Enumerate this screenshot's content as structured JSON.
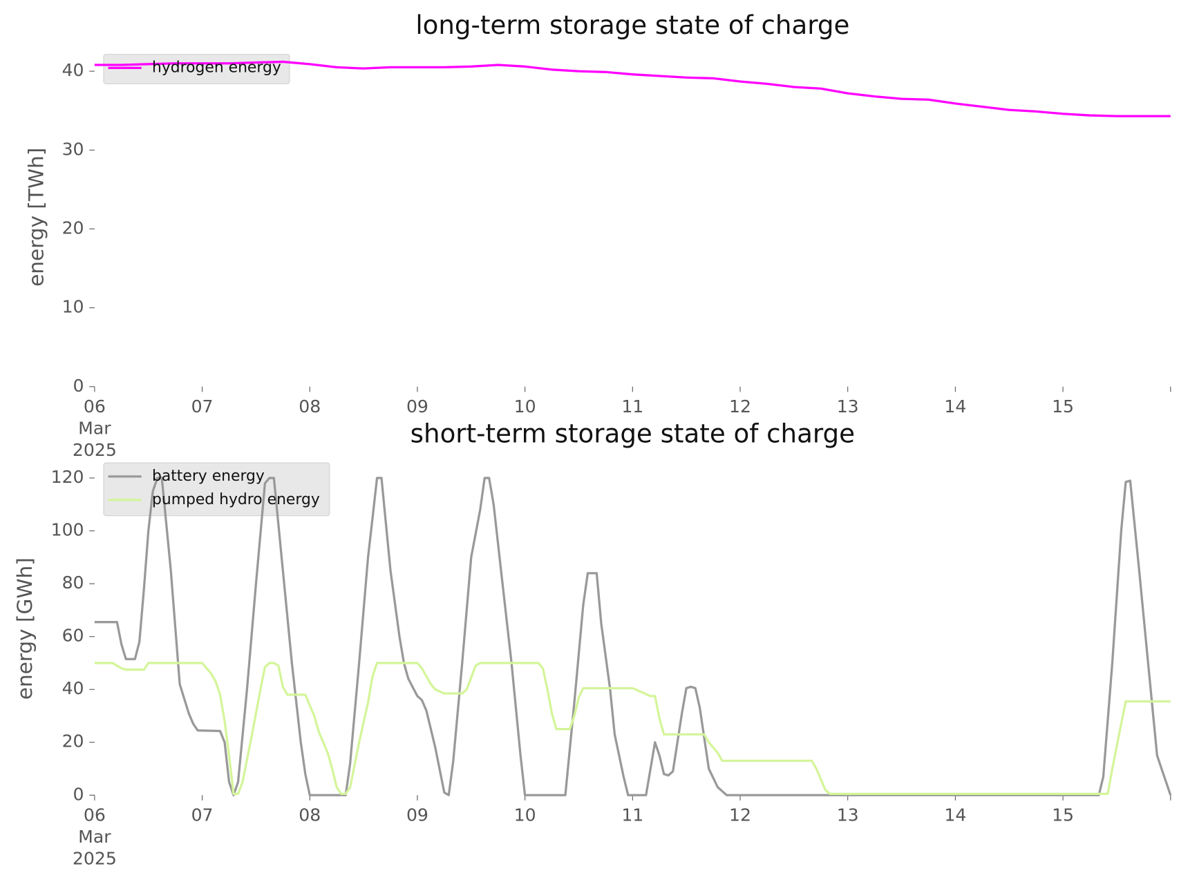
{
  "chart_data": [
    {
      "type": "line",
      "title": "long-term storage state of charge",
      "y_label": "energy [TWh]",
      "ylim": [
        0,
        43
      ],
      "yticks": [
        0,
        10,
        20,
        30,
        40
      ],
      "xlim": [
        "2025-03-06T00:00",
        "2025-03-16T00:00"
      ],
      "xticks": [
        {
          "value": "2025-03-06T00:00",
          "label": "06\nMar\n2025"
        },
        {
          "value": "2025-03-07T00:00",
          "label": "07"
        },
        {
          "value": "2025-03-08T00:00",
          "label": "08"
        },
        {
          "value": "2025-03-09T00:00",
          "label": "09"
        },
        {
          "value": "2025-03-10T00:00",
          "label": "10"
        },
        {
          "value": "2025-03-11T00:00",
          "label": "11"
        },
        {
          "value": "2025-03-12T00:00",
          "label": "12"
        },
        {
          "value": "2025-03-13T00:00",
          "label": "13"
        },
        {
          "value": "2025-03-14T00:00",
          "label": "14"
        },
        {
          "value": "2025-03-15T00:00",
          "label": "15"
        }
      ],
      "grid": false,
      "legend": "upper left",
      "x": [
        "2025-03-06T00:00",
        "2025-03-06T06:00",
        "2025-03-06T12:00",
        "2025-03-06T18:00",
        "2025-03-07T00:00",
        "2025-03-07T06:00",
        "2025-03-07T12:00",
        "2025-03-07T18:00",
        "2025-03-08T00:00",
        "2025-03-08T06:00",
        "2025-03-08T12:00",
        "2025-03-08T18:00",
        "2025-03-09T00:00",
        "2025-03-09T06:00",
        "2025-03-09T12:00",
        "2025-03-09T18:00",
        "2025-03-10T00:00",
        "2025-03-10T06:00",
        "2025-03-10T12:00",
        "2025-03-10T18:00",
        "2025-03-11T00:00",
        "2025-03-11T06:00",
        "2025-03-11T12:00",
        "2025-03-11T18:00",
        "2025-03-12T00:00",
        "2025-03-12T06:00",
        "2025-03-12T12:00",
        "2025-03-12T18:00",
        "2025-03-13T00:00",
        "2025-03-13T06:00",
        "2025-03-13T12:00",
        "2025-03-13T18:00",
        "2025-03-14T00:00",
        "2025-03-14T06:00",
        "2025-03-14T12:00",
        "2025-03-14T18:00",
        "2025-03-15T00:00",
        "2025-03-15T06:00",
        "2025-03-15T12:00",
        "2025-03-15T18:00",
        "2025-03-16T00:00"
      ],
      "series": [
        {
          "name": "hydrogen energy",
          "color": "#ff00ff",
          "values": [
            40.8,
            40.8,
            40.9,
            41.0,
            41.0,
            41.0,
            41.1,
            41.2,
            40.9,
            40.5,
            40.35,
            40.5,
            40.5,
            40.5,
            40.6,
            40.8,
            40.6,
            40.2,
            40.0,
            39.9,
            39.6,
            39.4,
            39.2,
            39.1,
            38.7,
            38.4,
            38.0,
            37.8,
            37.2,
            36.8,
            36.5,
            36.4,
            35.9,
            35.5,
            35.1,
            34.9,
            34.6,
            34.4,
            34.3,
            34.3,
            34.3
          ]
        }
      ]
    },
    {
      "type": "line",
      "title": "short-term storage state of charge",
      "y_label": "energy [GWh]",
      "ylim": [
        0,
        126
      ],
      "yticks": [
        0,
        20,
        40,
        60,
        80,
        100,
        120
      ],
      "xlim": [
        "2025-03-06T00:00",
        "2025-03-16T00:00"
      ],
      "xticks": [
        {
          "value": "2025-03-06T00:00",
          "label": "06\nMar\n2025"
        },
        {
          "value": "2025-03-07T00:00",
          "label": "07"
        },
        {
          "value": "2025-03-08T00:00",
          "label": "08"
        },
        {
          "value": "2025-03-09T00:00",
          "label": "09"
        },
        {
          "value": "2025-03-10T00:00",
          "label": "10"
        },
        {
          "value": "2025-03-11T00:00",
          "label": "11"
        },
        {
          "value": "2025-03-12T00:00",
          "label": "12"
        },
        {
          "value": "2025-03-13T00:00",
          "label": "13"
        },
        {
          "value": "2025-03-14T00:00",
          "label": "14"
        },
        {
          "value": "2025-03-15T00:00",
          "label": "15"
        }
      ],
      "grid": false,
      "legend": "upper left",
      "series": [
        {
          "name": "battery energy",
          "color": "#999999",
          "x": [
            "2025-03-06T00:00",
            "2025-03-06T05:00",
            "2025-03-06T06:00",
            "2025-03-06T07:00",
            "2025-03-06T09:00",
            "2025-03-06T10:00",
            "2025-03-06T11:00",
            "2025-03-06T12:00",
            "2025-03-06T13:00",
            "2025-03-06T14:00",
            "2025-03-06T15:00",
            "2025-03-06T17:00",
            "2025-03-06T19:00",
            "2025-03-06T21:00",
            "2025-03-06T22:00",
            "2025-03-06T23:00",
            "2025-03-07T04:00",
            "2025-03-07T05:00",
            "2025-03-07T06:00",
            "2025-03-07T07:00",
            "2025-03-07T08:00",
            "2025-03-07T10:00",
            "2025-03-07T12:00",
            "2025-03-07T14:00",
            "2025-03-07T15:00",
            "2025-03-07T16:00",
            "2025-03-07T18:00",
            "2025-03-07T20:00",
            "2025-03-07T22:00",
            "2025-03-07T23:00",
            "2025-03-08T00:00",
            "2025-03-08T08:00",
            "2025-03-08T09:00",
            "2025-03-08T11:00",
            "2025-03-08T13:00",
            "2025-03-08T14:00",
            "2025-03-08T15:00",
            "2025-03-08T16:00",
            "2025-03-08T18:00",
            "2025-03-08T20:00",
            "2025-03-08T21:00",
            "2025-03-08T22:00",
            "2025-03-09T00:00",
            "2025-03-09T01:00",
            "2025-03-09T02:00",
            "2025-03-09T04:00",
            "2025-03-09T06:00",
            "2025-03-09T07:00",
            "2025-03-09T08:00",
            "2025-03-09T10:00",
            "2025-03-09T12:00",
            "2025-03-09T14:00",
            "2025-03-09T15:00",
            "2025-03-09T16:00",
            "2025-03-09T17:00",
            "2025-03-09T19:00",
            "2025-03-09T21:00",
            "2025-03-09T23:00",
            "2025-03-10T00:00",
            "2025-03-10T09:00",
            "2025-03-10T11:00",
            "2025-03-10T13:00",
            "2025-03-10T14:00",
            "2025-03-10T16:00",
            "2025-03-10T17:00",
            "2025-03-10T19:00",
            "2025-03-10T20:00",
            "2025-03-10T22:00",
            "2025-03-10T23:00",
            "2025-03-11T03:00",
            "2025-03-11T05:00",
            "2025-03-11T06:00",
            "2025-03-11T07:00",
            "2025-03-11T08:00",
            "2025-03-11T09:00",
            "2025-03-11T11:00",
            "2025-03-11T12:00",
            "2025-03-11T13:00",
            "2025-03-11T14:00",
            "2025-03-11T15:00",
            "2025-03-11T17:00",
            "2025-03-11T19:00",
            "2025-03-11T20:00",
            "2025-03-11T21:00",
            "2025-03-15T08:00",
            "2025-03-15T09:00",
            "2025-03-15T11:00",
            "2025-03-15T13:00",
            "2025-03-15T14:00",
            "2025-03-15T15:00",
            "2025-03-15T17:00",
            "2025-03-15T19:00",
            "2025-03-15T21:00",
            "2025-03-16T00:00"
          ],
          "values": [
            65.5,
            65.5,
            57,
            51.5,
            51.5,
            58,
            78,
            100,
            115,
            120,
            120,
            85,
            42,
            31,
            27,
            24.5,
            24.3,
            20,
            5,
            0,
            5,
            40,
            80,
            118,
            120,
            120,
            85,
            50,
            20,
            8,
            0,
            0,
            12,
            50,
            90,
            105,
            120,
            120,
            85,
            60,
            50,
            44,
            37.5,
            36,
            32,
            18,
            1,
            0,
            13,
            50,
            90,
            108,
            120,
            120,
            110,
            80,
            50,
            15,
            0,
            0,
            35,
            72,
            84,
            84,
            65,
            40,
            23,
            7,
            0,
            0,
            20,
            15,
            8,
            7.5,
            9,
            31,
            40.5,
            41,
            40.5,
            33,
            10,
            3,
            1.5,
            0,
            0,
            7,
            50,
            100,
            118.5,
            119,
            85,
            50,
            15,
            0
          ]
        },
        {
          "name": "pumped hydro energy",
          "color": "#d4f59a",
          "x": [
            "2025-03-06T00:00",
            "2025-03-06T04:00",
            "2025-03-06T06:00",
            "2025-03-06T07:00",
            "2025-03-06T11:00",
            "2025-03-06T12:00",
            "2025-03-06T23:00",
            "2025-03-07T00:00",
            "2025-03-07T02:00",
            "2025-03-07T03:00",
            "2025-03-07T04:00",
            "2025-03-07T05:00",
            "2025-03-07T06:00",
            "2025-03-07T07:00",
            "2025-03-07T08:00",
            "2025-03-07T09:00",
            "2025-03-07T11:00",
            "2025-03-07T13:00",
            "2025-03-07T14:00",
            "2025-03-07T15:00",
            "2025-03-07T16:00",
            "2025-03-07T17:00",
            "2025-03-07T18:00",
            "2025-03-07T19:00",
            "2025-03-07T23:00",
            "2025-03-08T01:00",
            "2025-03-08T02:00",
            "2025-03-08T04:00",
            "2025-03-08T05:00",
            "2025-03-08T06:00",
            "2025-03-08T07:00",
            "2025-03-08T08:00",
            "2025-03-08T09:00",
            "2025-03-08T11:00",
            "2025-03-08T13:00",
            "2025-03-08T14:00",
            "2025-03-08T15:00",
            "2025-03-09T00:00",
            "2025-03-09T01:00",
            "2025-03-09T03:00",
            "2025-03-09T04:00",
            "2025-03-09T06:00",
            "2025-03-09T10:00",
            "2025-03-09T11:00",
            "2025-03-09T13:00",
            "2025-03-09T14:00",
            "2025-03-10T03:00",
            "2025-03-10T04:00",
            "2025-03-10T05:00",
            "2025-03-10T06:00",
            "2025-03-10T07:00",
            "2025-03-10T10:00",
            "2025-03-10T11:00",
            "2025-03-10T12:00",
            "2025-03-10T13:00",
            "2025-03-11T00:00",
            "2025-03-11T02:00",
            "2025-03-11T04:00",
            "2025-03-11T05:00",
            "2025-03-11T06:00",
            "2025-03-11T07:00",
            "2025-03-11T16:00",
            "2025-03-11T17:00",
            "2025-03-11T18:00",
            "2025-03-11T19:00",
            "2025-03-11T20:00",
            "2025-03-12T16:00",
            "2025-03-12T17:00",
            "2025-03-12T18:00",
            "2025-03-12T19:00",
            "2025-03-12T20:00",
            "2025-03-15T10:00",
            "2025-03-15T11:00",
            "2025-03-15T13:00",
            "2025-03-15T14:00",
            "2025-03-16T00:00"
          ],
          "values": [
            50,
            50,
            48,
            47.5,
            47.5,
            50,
            50,
            50,
            46,
            43,
            38,
            28,
            15,
            0.5,
            0.5,
            5,
            22,
            40,
            48.5,
            50,
            50,
            49,
            41,
            38,
            38,
            30,
            24,
            16,
            10,
            3,
            0.5,
            0.5,
            3,
            20,
            35,
            45,
            50,
            50,
            48,
            42,
            40,
            38.5,
            38.5,
            40,
            49,
            50,
            50,
            48,
            40,
            31,
            25,
            25,
            30,
            37,
            40.5,
            40.5,
            39,
            37.5,
            37.5,
            29,
            23,
            23,
            20,
            18,
            16,
            13,
            13,
            10,
            6,
            2,
            0.5,
            0.5,
            10,
            27,
            35.5,
            35.5
          ]
        }
      ]
    }
  ]
}
